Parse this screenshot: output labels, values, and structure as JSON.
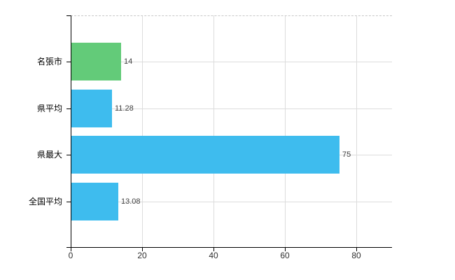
{
  "chart_data": {
    "type": "bar",
    "orientation": "horizontal",
    "title": "",
    "xlabel": "",
    "ylabel": "",
    "categories": [
      "名張市",
      "県平均",
      "県最大",
      "全国平均"
    ],
    "values": [
      14,
      11.28,
      75,
      13.08
    ],
    "data_labels": [
      "14",
      "11.28",
      "75",
      "13.08"
    ],
    "bar_colors": [
      "#63cb79",
      "#3ebcee",
      "#3ebcee",
      "#3ebcee"
    ],
    "xlim": [
      0,
      90
    ],
    "x_ticks": [
      0,
      20,
      40,
      60,
      80
    ],
    "x_tick_labels": [
      "0",
      "20",
      "40",
      "60",
      "80"
    ],
    "grid": true,
    "legend_position": "none"
  },
  "colors": {
    "highlight_bar": "#63cb79",
    "default_bar": "#3ebcee",
    "gridline": "#dcdcdc",
    "top_border": "#c9c9c9",
    "axis": "#000000",
    "tick_label": "#2e2e2e",
    "value_label": "#3f3f3f",
    "background": "#ffffff"
  }
}
